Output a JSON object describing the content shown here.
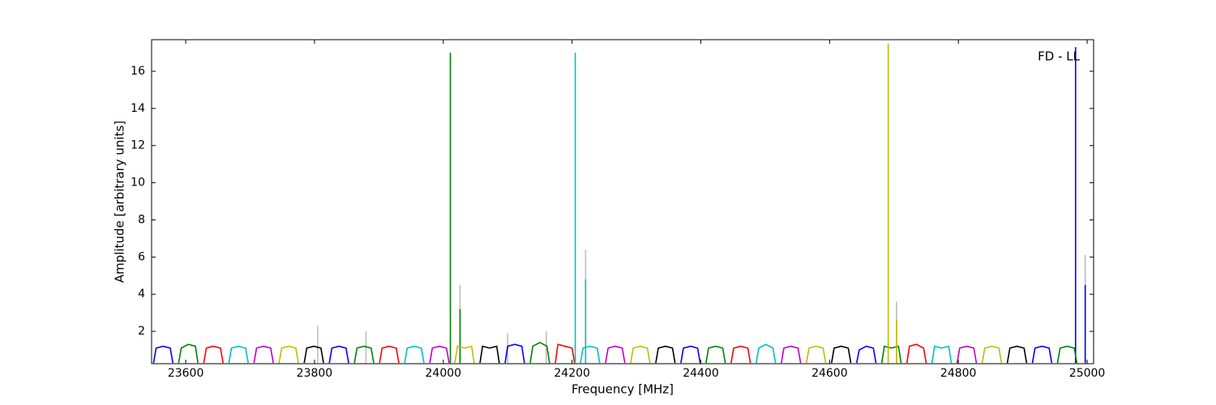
{
  "chart_data": {
    "type": "line",
    "xlabel": "Frequency [MHz]",
    "ylabel": "Amplitude [arbitrary units]",
    "annotation": "FD - LL",
    "xlim": [
      23547,
      25010
    ],
    "ylim": [
      0.26,
      17.7
    ],
    "xticks": [
      23600,
      23800,
      24000,
      24200,
      24400,
      24600,
      24800,
      25000
    ],
    "yticks": [
      2,
      4,
      6,
      8,
      10,
      12,
      14,
      16
    ],
    "series": [
      {
        "color": "#bebebe",
        "x": [
          23805,
          23805,
          null,
          23880,
          23880,
          null,
          24026,
          24026,
          null,
          24100,
          24100,
          null,
          24160,
          24160,
          null,
          24221,
          24221,
          null,
          24704,
          24704,
          null,
          24997,
          24997
        ],
        "values": [
          0.3,
          2.3,
          null,
          0.3,
          2.0,
          null,
          0.3,
          4.5,
          null,
          0.3,
          1.9,
          null,
          0.3,
          2.0,
          null,
          0.3,
          6.4,
          null,
          0.3,
          3.6,
          null,
          0.3,
          6.1
        ]
      },
      {
        "color": "#0000ff",
        "x": [
          23550,
          23554,
          23565,
          23576,
          23580,
          null,
          23823,
          23827,
          23838,
          23849,
          23853,
          null,
          24096,
          24100,
          24111,
          24122,
          24126,
          null,
          24369,
          24373,
          24384,
          24395,
          24399,
          null,
          24642,
          24646,
          24657,
          24668,
          24672,
          null,
          24915,
          24919,
          24930,
          24941,
          24945,
          null,
          24982,
          24982,
          null,
          24997,
          24997
        ],
        "values": [
          0.3,
          1.1,
          1.2,
          1.1,
          0.3,
          null,
          0.3,
          1.1,
          1.2,
          1.1,
          0.3,
          null,
          0.3,
          1.2,
          1.3,
          1.2,
          0.3,
          null,
          0.3,
          1.1,
          1.2,
          1.1,
          0.3,
          null,
          0.3,
          1.0,
          1.2,
          1.1,
          0.3,
          null,
          0.3,
          1.1,
          1.2,
          1.1,
          0.3,
          null,
          0.3,
          17.3,
          null,
          0.3,
          4.5
        ]
      },
      {
        "color": "#008000",
        "x": [
          23589,
          23593,
          23604,
          23615,
          23619,
          null,
          23862,
          23866,
          23877,
          23888,
          23892,
          null,
          24135,
          24139,
          24150,
          24161,
          24165,
          null,
          24408,
          24412,
          24423,
          24434,
          24438,
          null,
          24681,
          24685,
          24696,
          24707,
          24711,
          null,
          24954,
          24958,
          24969,
          24980,
          24984,
          null,
          24011,
          24011,
          null,
          24026,
          24026
        ],
        "values": [
          0.3,
          1.1,
          1.3,
          1.2,
          0.3,
          null,
          0.3,
          1.1,
          1.2,
          1.1,
          0.3,
          null,
          0.3,
          1.2,
          1.4,
          1.2,
          0.3,
          null,
          0.3,
          1.1,
          1.2,
          1.1,
          0.3,
          null,
          0.3,
          1.2,
          1.1,
          1.2,
          0.3,
          null,
          0.3,
          1.1,
          1.2,
          1.1,
          0.3,
          null,
          0.3,
          17.0,
          null,
          0.3,
          3.2
        ]
      },
      {
        "color": "#ff0000",
        "x": [
          23628,
          23632,
          23643,
          23654,
          23658,
          null,
          23901,
          23905,
          23916,
          23927,
          23931,
          null,
          24174,
          24178,
          24189,
          24200,
          24204,
          null,
          24447,
          24451,
          24462,
          24473,
          24477,
          null,
          24720,
          24724,
          24735,
          24746,
          24750
        ],
        "values": [
          0.3,
          1.1,
          1.2,
          1.1,
          0.3,
          null,
          0.3,
          1.1,
          1.2,
          1.1,
          0.3,
          null,
          0.3,
          1.3,
          1.2,
          1.1,
          0.3,
          null,
          0.3,
          1.1,
          1.2,
          1.1,
          0.3,
          null,
          0.3,
          1.2,
          1.3,
          1.1,
          0.3
        ]
      },
      {
        "color": "#00bfbf",
        "x": [
          23667,
          23671,
          23682,
          23693,
          23697,
          null,
          23940,
          23944,
          23955,
          23966,
          23970,
          null,
          24213,
          24217,
          24228,
          24239,
          24243,
          null,
          24486,
          24490,
          24501,
          24512,
          24516,
          null,
          24759,
          24763,
          24774,
          24785,
          24789,
          null,
          24205,
          24205,
          null,
          24221,
          24221
        ],
        "values": [
          0.3,
          1.1,
          1.2,
          1.1,
          0.3,
          null,
          0.3,
          1.1,
          1.2,
          1.1,
          0.3,
          null,
          0.3,
          1.1,
          1.2,
          1.1,
          0.3,
          null,
          0.3,
          1.1,
          1.3,
          1.1,
          0.3,
          null,
          0.3,
          1.2,
          1.1,
          1.2,
          0.3,
          null,
          0.3,
          17.0,
          null,
          0.3,
          4.8
        ]
      },
      {
        "color": "#bf00bf",
        "x": [
          23706,
          23710,
          23721,
          23732,
          23736,
          null,
          23979,
          23983,
          23994,
          24005,
          24009,
          null,
          24252,
          24256,
          24267,
          24278,
          24282,
          null,
          24525,
          24529,
          24540,
          24551,
          24555,
          null,
          24798,
          24802,
          24813,
          24824,
          24828
        ],
        "values": [
          0.3,
          1.1,
          1.2,
          1.1,
          0.3,
          null,
          0.3,
          1.1,
          1.2,
          1.1,
          0.3,
          null,
          0.3,
          1.1,
          1.2,
          1.1,
          0.3,
          null,
          0.3,
          1.1,
          1.2,
          1.1,
          0.3,
          null,
          0.3,
          1.1,
          1.2,
          1.1,
          0.3
        ]
      },
      {
        "color": "#bfbf00",
        "x": [
          23745,
          23749,
          23760,
          23771,
          23775,
          null,
          24018,
          24022,
          24033,
          24044,
          24048,
          null,
          24291,
          24295,
          24306,
          24317,
          24321,
          null,
          24564,
          24568,
          24579,
          24590,
          24594,
          null,
          24837,
          24841,
          24852,
          24863,
          24867,
          null,
          24691,
          24691,
          null,
          24704,
          24704
        ],
        "values": [
          0.3,
          1.1,
          1.2,
          1.1,
          0.3,
          null,
          0.3,
          1.2,
          1.1,
          1.2,
          0.3,
          null,
          0.3,
          1.1,
          1.2,
          1.1,
          0.3,
          null,
          0.3,
          1.1,
          1.2,
          1.1,
          0.3,
          null,
          0.3,
          1.1,
          1.2,
          1.1,
          0.3,
          null,
          0.3,
          17.5,
          null,
          0.3,
          2.6
        ]
      },
      {
        "color": "#000000",
        "x": [
          23784,
          23788,
          23799,
          23810,
          23814,
          null,
          24057,
          24061,
          24072,
          24083,
          24087,
          null,
          24330,
          24334,
          24345,
          24356,
          24360,
          null,
          24603,
          24607,
          24618,
          24629,
          24633,
          null,
          24876,
          24880,
          24891,
          24902,
          24906
        ],
        "values": [
          0.3,
          1.1,
          1.2,
          1.1,
          0.3,
          null,
          0.3,
          1.2,
          1.1,
          1.2,
          0.3,
          null,
          0.3,
          1.1,
          1.2,
          1.1,
          0.3,
          null,
          0.3,
          1.1,
          1.2,
          1.1,
          0.3,
          null,
          0.3,
          1.1,
          1.2,
          1.1,
          0.3
        ]
      }
    ]
  }
}
